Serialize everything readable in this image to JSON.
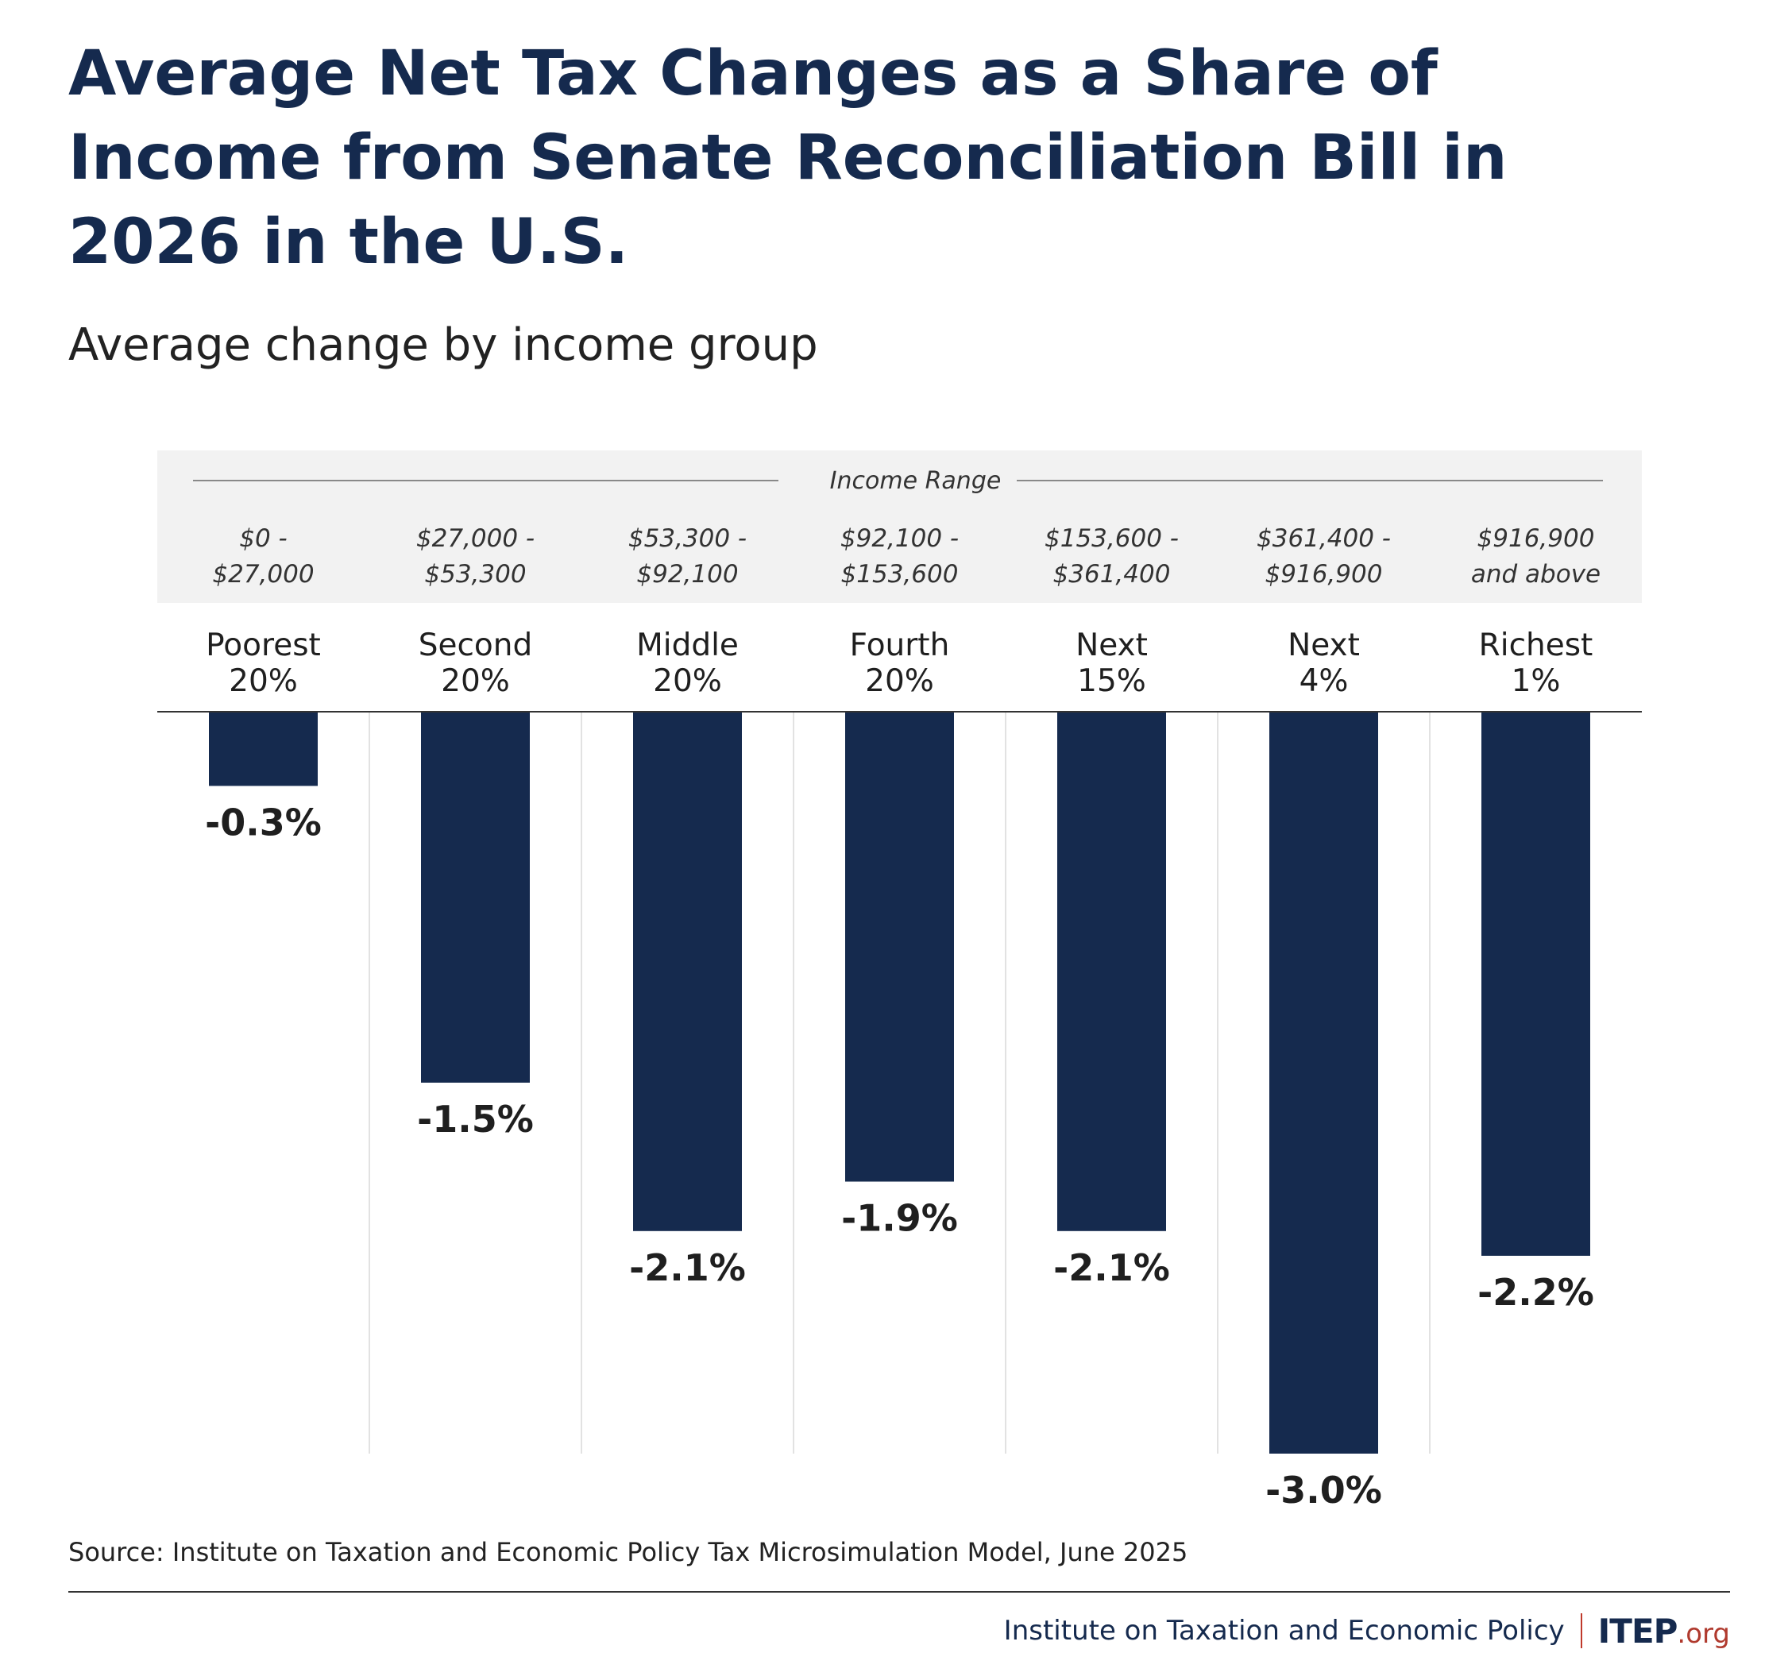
{
  "title_lines": [
    "Average Net Tax Changes as a Share of",
    "Income from Senate Reconciliation Bill in",
    "2026 in the U.S."
  ],
  "subtitle": "Average change by income group",
  "chart_data": {
    "type": "bar",
    "header_label": "Income Range",
    "categories": [
      "Poorest 20%",
      "Second 20%",
      "Middle 20%",
      "Fourth 20%",
      "Next 15%",
      "Next 4%",
      "Richest 1%"
    ],
    "category_lines": [
      [
        "Poorest",
        "20%"
      ],
      [
        "Second",
        "20%"
      ],
      [
        "Middle",
        "20%"
      ],
      [
        "Fourth",
        "20%"
      ],
      [
        "Next",
        "15%"
      ],
      [
        "Next",
        "4%"
      ],
      [
        "Richest",
        "1%"
      ]
    ],
    "income_ranges": [
      [
        "$0 -",
        "$27,000"
      ],
      [
        "$27,000 -",
        "$53,300"
      ],
      [
        "$53,300 -",
        "$92,100"
      ],
      [
        "$92,100 -",
        "$153,600"
      ],
      [
        "$153,600 -",
        "$361,400"
      ],
      [
        "$361,400 -",
        "$916,900"
      ],
      [
        "$916,900",
        "and above"
      ]
    ],
    "values": [
      -0.3,
      -1.5,
      -2.1,
      -1.9,
      -2.1,
      -3.0,
      -2.2
    ],
    "value_labels": [
      "-0.3%",
      "-1.5%",
      "-2.1%",
      "-1.9%",
      "-2.1%",
      "-3.0%",
      "-2.2%"
    ],
    "ylim": [
      -3.0,
      0
    ],
    "colors": {
      "bar": "#152a4e",
      "header_bg": "#f2f2f2",
      "grid": "#d9d9d9"
    }
  },
  "source": "Source: Institute on Taxation and Economic Policy Tax Microsimulation Model, June 2025",
  "footer": {
    "org_name": "Institute on Taxation and Economic Policy",
    "logo_main": "ITEP",
    "logo_suffix": ".org"
  }
}
